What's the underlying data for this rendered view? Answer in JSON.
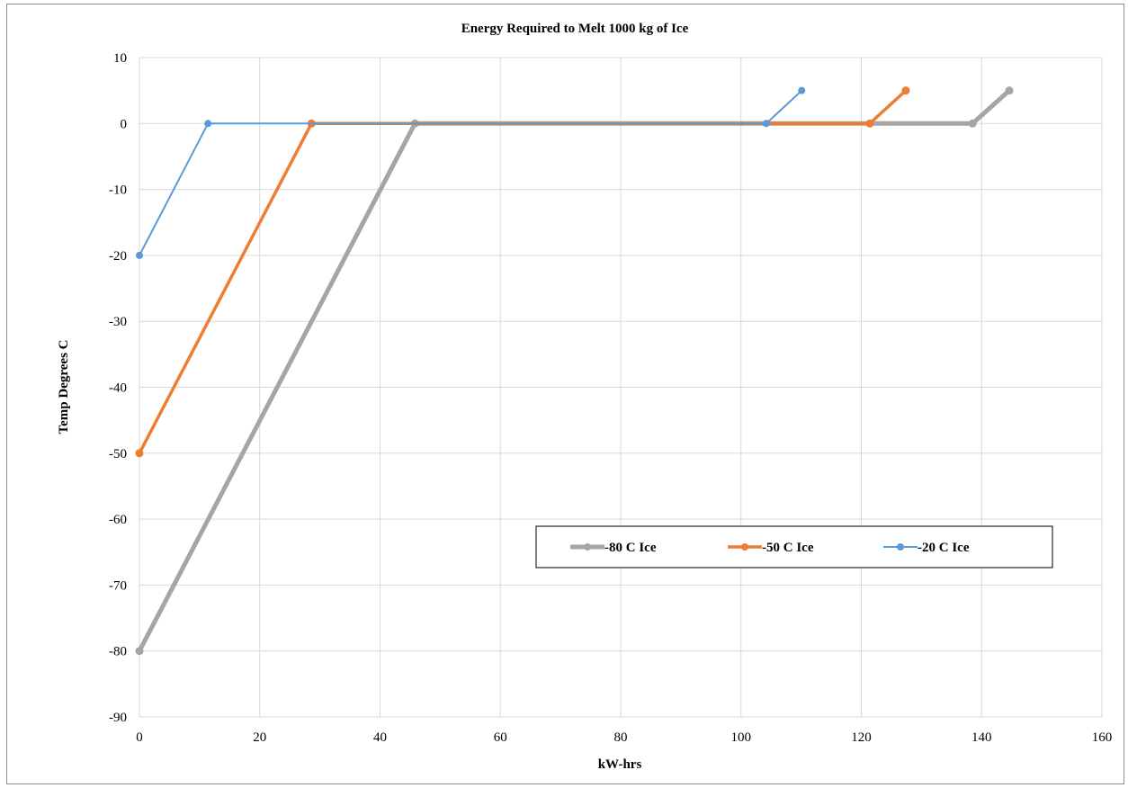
{
  "chart_data": {
    "type": "line",
    "title": "Energy Required to Melt 1000 kg of Ice",
    "xlabel": "kW-hrs",
    "ylabel": "Temp Degrees C",
    "xlim": [
      0,
      160
    ],
    "ylim": [
      -90,
      10
    ],
    "x_ticks": [
      0,
      20,
      40,
      60,
      80,
      100,
      120,
      140,
      160
    ],
    "y_ticks": [
      10,
      0,
      -10,
      -20,
      -30,
      -40,
      -50,
      -60,
      -70,
      -80,
      -90
    ],
    "grid": true,
    "legend_position": "bottom-right",
    "series": [
      {
        "name": "-80 C Ice",
        "color": "#a5a5a5",
        "points": [
          [
            0,
            -80
          ],
          [
            45.8,
            0
          ],
          [
            138.5,
            0
          ],
          [
            144.6,
            5
          ]
        ]
      },
      {
        "name": "-50 C Ice",
        "color": "#ed7d31",
        "points": [
          [
            0,
            -50
          ],
          [
            28.6,
            0
          ],
          [
            121.4,
            0
          ],
          [
            127.4,
            5
          ]
        ]
      },
      {
        "name": "-20 C Ice",
        "color": "#5b9bd5",
        "points": [
          [
            0,
            -20
          ],
          [
            11.4,
            0
          ],
          [
            104.2,
            0
          ],
          [
            110.1,
            5
          ]
        ]
      }
    ]
  }
}
